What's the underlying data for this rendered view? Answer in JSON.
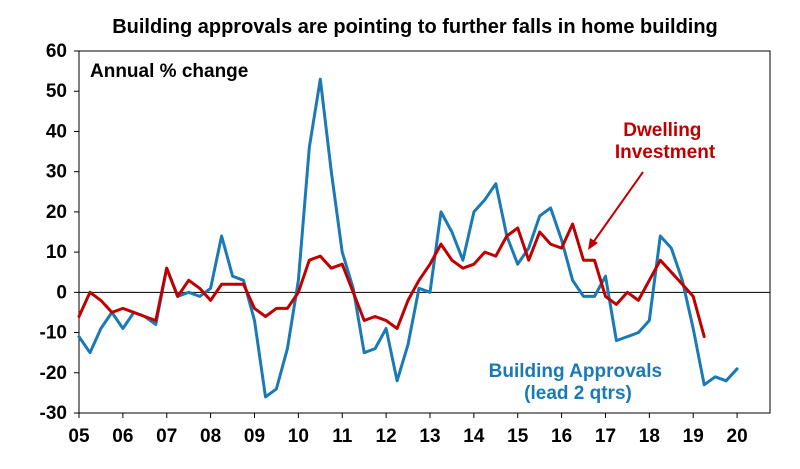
{
  "chart_data": {
    "type": "line",
    "title": "Building approvals are pointing to further falls in home building",
    "unit_label": "Annual % change",
    "ylim": [
      -30,
      60
    ],
    "yticks": [
      "60",
      "50",
      "40",
      "30",
      "20",
      "10",
      "0",
      "-10",
      "-20",
      "-30"
    ],
    "xlim": [
      2005,
      2020.75
    ],
    "xticks": [
      "05",
      "06",
      "07",
      "08",
      "09",
      "10",
      "11",
      "12",
      "13",
      "14",
      "15",
      "16",
      "17",
      "18",
      "19",
      "20"
    ],
    "grid": false,
    "series": [
      {
        "label_lines": [
          "Building Approvals",
          "(lead 2 qtrs)"
        ],
        "color": "#1A7AB5",
        "x": [
          2005.0,
          2005.25,
          2005.5,
          2005.75,
          2006.0,
          2006.25,
          2006.5,
          2006.75,
          2007.0,
          2007.25,
          2007.5,
          2007.75,
          2008.0,
          2008.25,
          2008.5,
          2008.75,
          2009.0,
          2009.25,
          2009.5,
          2009.75,
          2010.0,
          2010.25,
          2010.5,
          2010.75,
          2011.0,
          2011.25,
          2011.5,
          2011.75,
          2012.0,
          2012.25,
          2012.5,
          2012.75,
          2013.0,
          2013.25,
          2013.5,
          2013.75,
          2014.0,
          2014.25,
          2014.5,
          2014.75,
          2015.0,
          2015.25,
          2015.5,
          2015.75,
          2016.0,
          2016.25,
          2016.5,
          2016.75,
          2017.0,
          2017.25,
          2017.5,
          2017.75,
          2018.0,
          2018.25,
          2018.5,
          2018.75,
          2019.0,
          2019.25,
          2019.5,
          2019.75,
          2020.0
        ],
        "y": [
          -11,
          -15,
          -9,
          -5,
          -9,
          -5,
          -6,
          -8,
          6,
          -1,
          0,
          -1,
          1,
          14,
          4,
          3,
          -7,
          -26,
          -24,
          -14,
          3,
          36,
          53,
          30,
          10,
          1,
          -15,
          -14,
          -9,
          -22,
          -13,
          1,
          0,
          20,
          15,
          8,
          20,
          23,
          27,
          14,
          7,
          11,
          19,
          21,
          13,
          3,
          -1,
          -1,
          4,
          -12,
          -11,
          -10,
          -7,
          14,
          11,
          3,
          -9,
          -23,
          -21,
          -22,
          -19
        ]
      },
      {
        "label_lines": [
          "Dwelling",
          "Investment"
        ],
        "color": "#C00000",
        "x": [
          2005.0,
          2005.25,
          2005.5,
          2005.75,
          2006.0,
          2006.25,
          2006.5,
          2006.75,
          2007.0,
          2007.25,
          2007.5,
          2007.75,
          2008.0,
          2008.25,
          2008.5,
          2008.75,
          2009.0,
          2009.25,
          2009.5,
          2009.75,
          2010.0,
          2010.25,
          2010.5,
          2010.75,
          2011.0,
          2011.25,
          2011.5,
          2011.75,
          2012.0,
          2012.25,
          2012.5,
          2012.75,
          2013.0,
          2013.25,
          2013.5,
          2013.75,
          2014.0,
          2014.25,
          2014.5,
          2014.75,
          2015.0,
          2015.25,
          2015.5,
          2015.75,
          2016.0,
          2016.25,
          2016.5,
          2016.75,
          2017.0,
          2017.25,
          2017.5,
          2017.75,
          2018.0,
          2018.25,
          2018.5,
          2018.75,
          2019.0,
          2019.25
        ],
        "y": [
          -6,
          0,
          -2,
          -5,
          -4,
          -5,
          -6,
          -7,
          6,
          -1,
          3,
          1,
          -2,
          2,
          2,
          2,
          -4,
          -6,
          -4,
          -4,
          0,
          8,
          9,
          6,
          7,
          0,
          -7,
          -6,
          -7,
          -9,
          -2,
          3,
          7,
          12,
          8,
          6,
          7,
          10,
          9,
          14,
          16,
          8,
          15,
          12,
          11,
          17,
          8,
          8,
          -1,
          -3,
          0,
          -2,
          3,
          8,
          5,
          2,
          -1,
          -11
        ]
      }
    ]
  }
}
